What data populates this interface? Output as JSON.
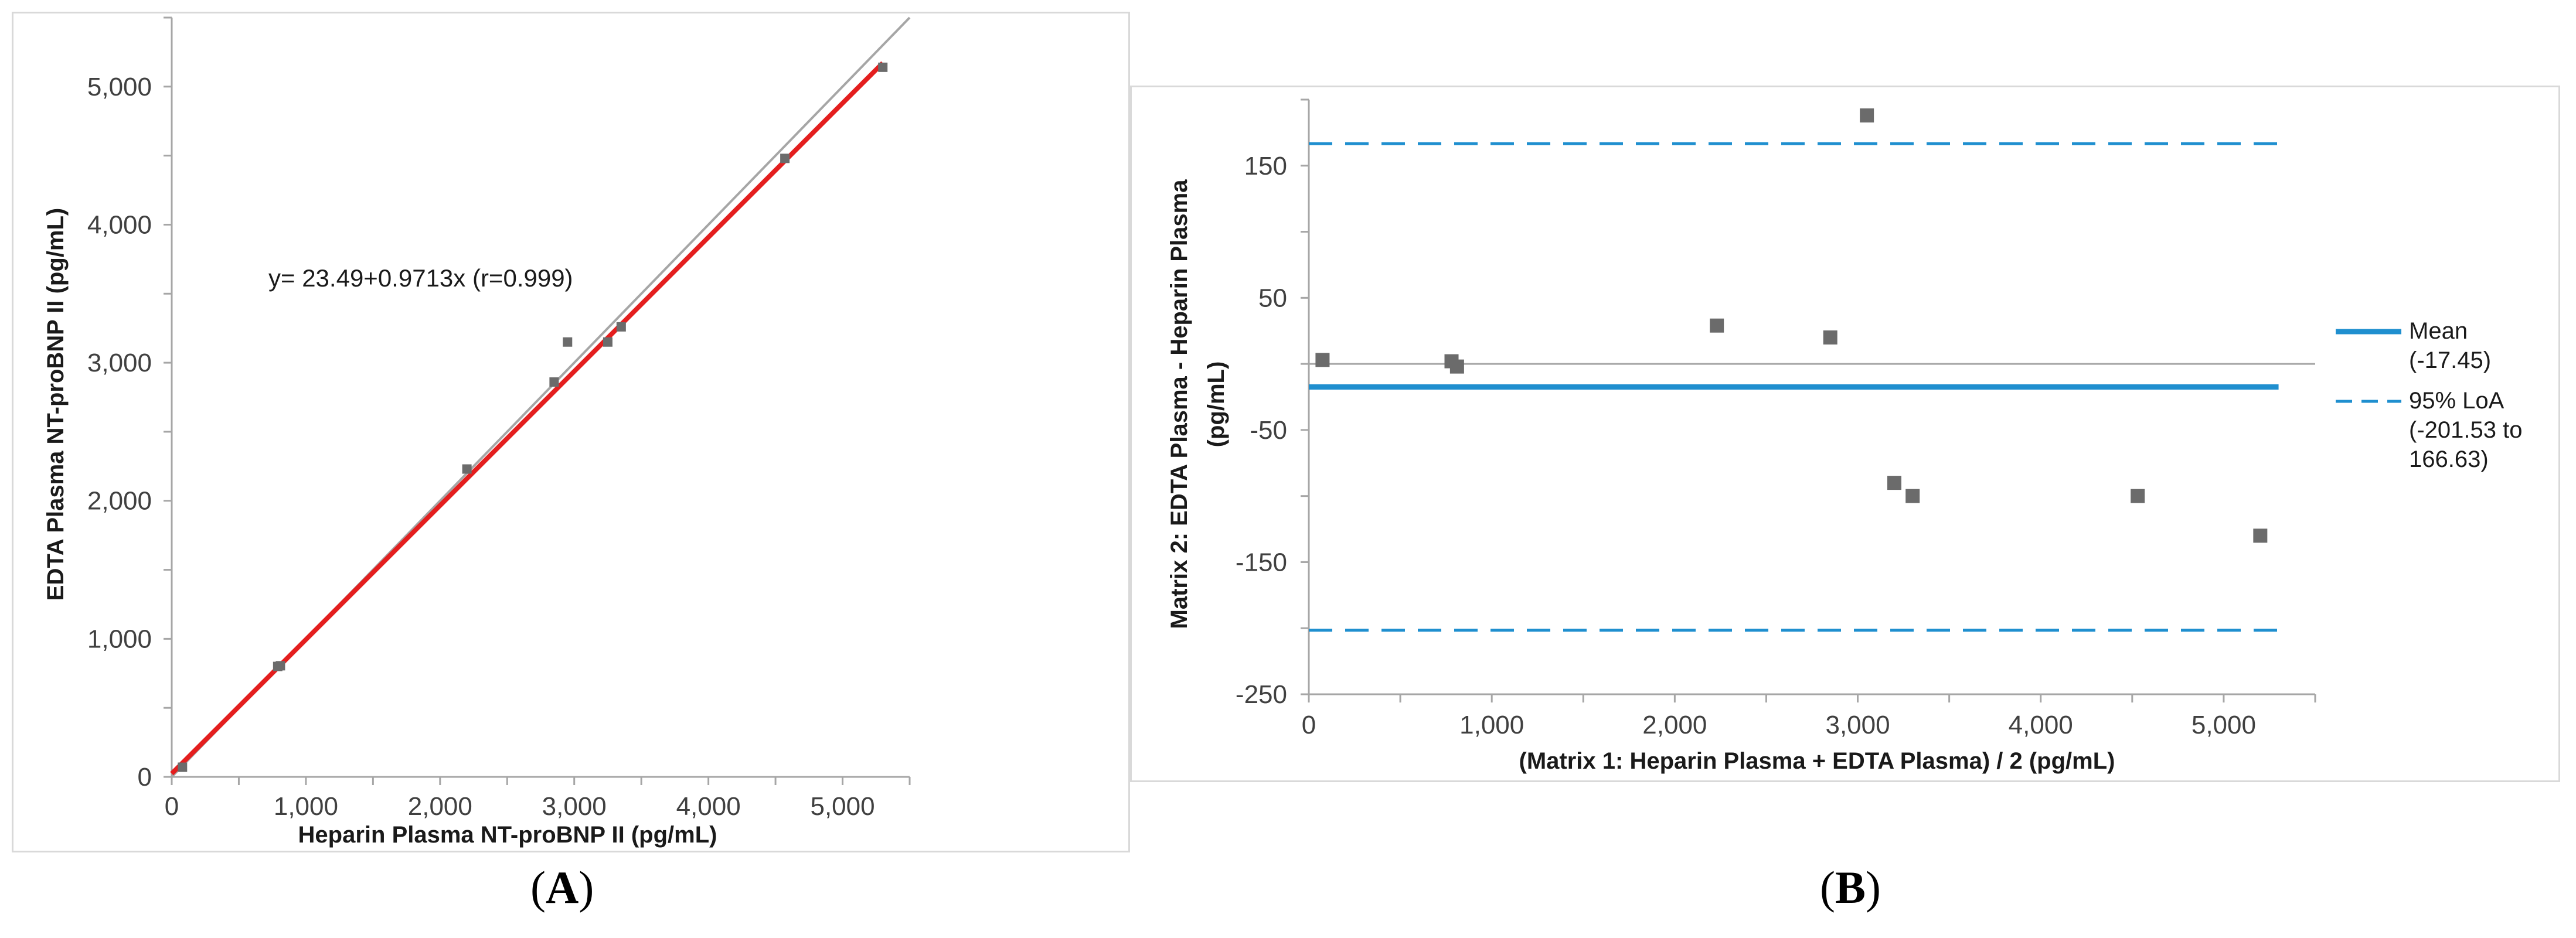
{
  "panels": {
    "a": {
      "label_open": "(",
      "label_letter": "A",
      "label_close": ")"
    },
    "b": {
      "label_open": "(",
      "label_letter": "B",
      "label_close": ")"
    }
  },
  "chart_data": [
    {
      "type": "scatter",
      "panel": "A",
      "title": "",
      "xlabel": "Heparin Plasma NT-proBNP II (pg/mL)",
      "ylabel": "EDTA Plasma NT-proBNP II (pg/mL)",
      "xlim": [
        0,
        5500
      ],
      "ylim": [
        0,
        5500
      ],
      "xticks": [
        0,
        1000,
        2000,
        3000,
        4000,
        5000
      ],
      "xtick_labels": [
        "0",
        "1,000",
        "2,000",
        "3,000",
        "4,000",
        "5,000"
      ],
      "yticks": [
        0,
        1000,
        2000,
        3000,
        4000,
        5000
      ],
      "ytick_labels": [
        "0",
        "1,000",
        "2,000",
        "3,000",
        "4,000",
        "5,000"
      ],
      "grid": false,
      "annotation": "y= 23.49+0.9713x (r=0.999)",
      "points": {
        "x": [
          80,
          790,
          810,
          2200,
          2850,
          2950,
          3250,
          3350,
          4570,
          5300
        ],
        "y": [
          70,
          800,
          805,
          2230,
          2860,
          3150,
          3150,
          3260,
          4480,
          5140
        ]
      },
      "fit_line": {
        "intercept": 23.49,
        "slope": 0.9713,
        "x_range": [
          0,
          5300
        ],
        "color": "#e41e1e"
      },
      "identity_line": {
        "x_range": [
          0,
          5500
        ],
        "color": "#a6a6a6"
      },
      "point_color": "#6b6b6b"
    },
    {
      "type": "scatter",
      "panel": "B",
      "title": "",
      "xlabel": "(Matrix 1: Heparin Plasma + EDTA Plasma) / 2 (pg/mL)",
      "ylabel_line1": "Matrix 2: EDTA Plasma - Heparin Plasma",
      "ylabel_line2": "(pg/mL)",
      "xlim": [
        0,
        5500
      ],
      "ylim": [
        -250,
        200
      ],
      "xticks": [
        0,
        1000,
        2000,
        3000,
        4000,
        5000
      ],
      "xtick_labels": [
        "0",
        "1,000",
        "2,000",
        "3,000",
        "4,000",
        "5,000"
      ],
      "yticks": [
        -250,
        -150,
        -50,
        50,
        150
      ],
      "ytick_labels": [
        "-250",
        "-150",
        "-50",
        "50",
        "150"
      ],
      "grid": false,
      "zero_line_color": "#a6a6a6",
      "points": {
        "x": [
          75,
          780,
          810,
          2230,
          2850,
          3050,
          3200,
          3300,
          4530,
          5200
        ],
        "y": [
          3,
          2,
          -2,
          29,
          20,
          188,
          -90,
          -100,
          -100,
          -130
        ]
      },
      "point_color": "#6b6b6b",
      "mean": -17.45,
      "loa_lower": -201.53,
      "loa_upper": 166.63,
      "line_color": "#1f8fcf",
      "legend_position": "right",
      "legend": [
        {
          "style": "solid",
          "lines": [
            "Mean",
            "(-17.45)"
          ]
        },
        {
          "style": "dashed",
          "lines": [
            "95% LoA",
            "(-201.53 to",
            "166.63)"
          ]
        }
      ]
    }
  ]
}
